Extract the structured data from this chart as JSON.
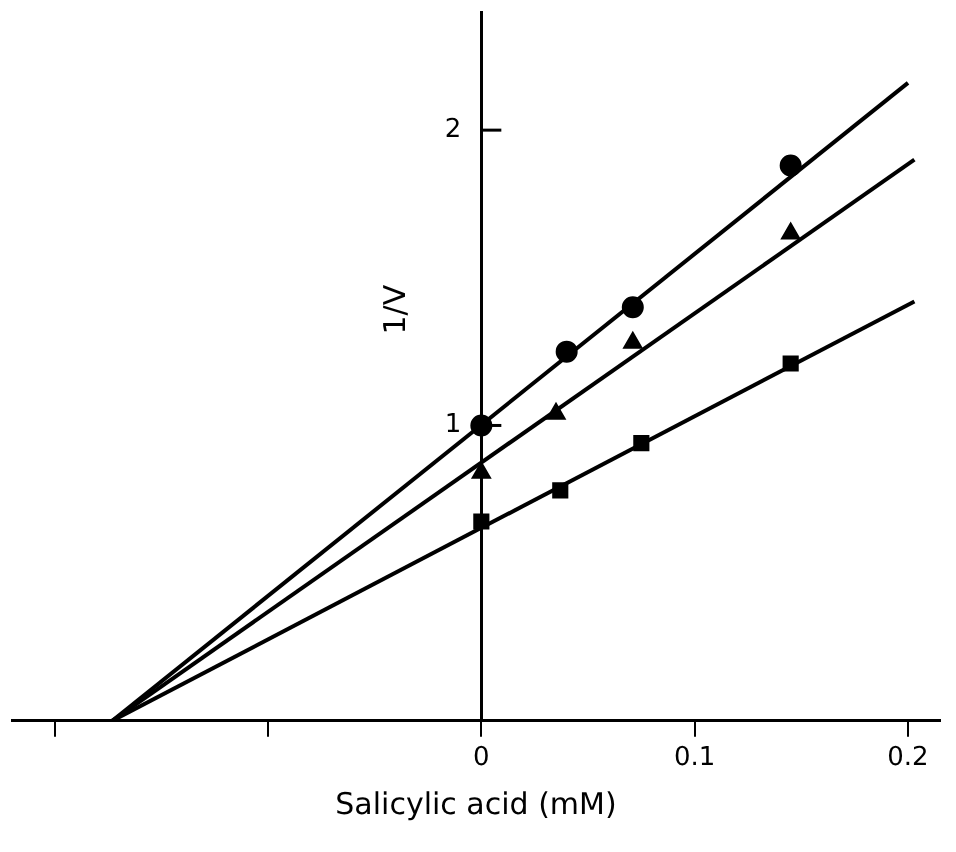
{
  "chart_data": {
    "type": "scatter",
    "xlabel": "Salicylic acid (mM)",
    "ylabel": "1/V",
    "xlim": [
      -0.22,
      0.215
    ],
    "ylim": [
      0,
      2.4
    ],
    "xticks": [
      {
        "value": -0.2,
        "label": null
      },
      {
        "value": -0.1,
        "label": null
      },
      0,
      0.1,
      0.2
    ],
    "yticks": [
      1,
      2
    ],
    "grid": false,
    "legend": false,
    "series": [
      {
        "marker": "circle",
        "color": "#000000",
        "x": [
          0,
          0.04,
          0.071,
          0.145
        ],
        "values": [
          1.0,
          1.25,
          1.4,
          1.88
        ]
      },
      {
        "marker": "triangle",
        "color": "#000000",
        "x": [
          0,
          0.035,
          0.071,
          0.145
        ],
        "values": [
          0.84,
          1.04,
          1.28,
          1.65
        ]
      },
      {
        "marker": "square",
        "color": "#000000",
        "x": [
          0,
          0.037,
          0.075,
          0.145
        ],
        "values": [
          0.675,
          0.78,
          0.94,
          1.21
        ]
      },
      {
        "type": "line",
        "marker": "none",
        "line_style": "solid",
        "color": "#000000",
        "x": [
          -0.173,
          0.2
        ],
        "values": [
          0,
          2.16
        ]
      },
      {
        "type": "line",
        "marker": "none",
        "line_style": "solid",
        "color": "#000000",
        "x": [
          -0.173,
          0.203
        ],
        "values": [
          0,
          1.9
        ]
      },
      {
        "type": "line",
        "marker": "none",
        "line_style": "solid",
        "color": "#000000",
        "x": [
          -0.173,
          0.203
        ],
        "values": [
          0,
          1.42
        ]
      }
    ]
  }
}
